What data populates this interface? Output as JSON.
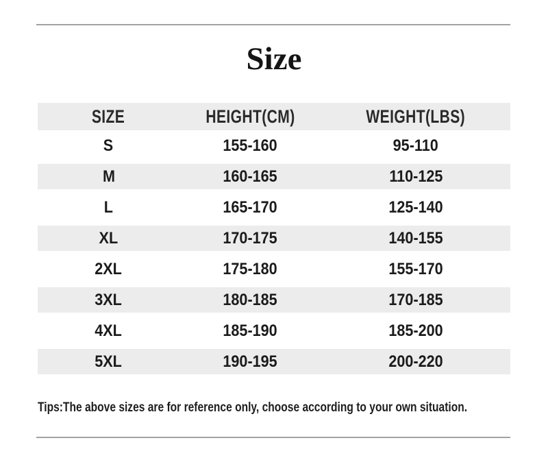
{
  "page": {
    "title": "Size",
    "tips": "Tips:The above sizes are for reference only, choose according to your own situation."
  },
  "chart_data": {
    "type": "table",
    "title": "Size",
    "columns": [
      "SIZE",
      "HEIGHT(CM)",
      "WEIGHT(LBS)"
    ],
    "rows": [
      [
        "S",
        "155-160",
        "95-110"
      ],
      [
        "M",
        "160-165",
        "110-125"
      ],
      [
        "L",
        "165-170",
        "125-140"
      ],
      [
        "XL",
        "170-175",
        "140-155"
      ],
      [
        "2XL",
        "175-180",
        "155-170"
      ],
      [
        "3XL",
        "180-185",
        "170-185"
      ],
      [
        "4XL",
        "185-190",
        "185-200"
      ],
      [
        "5XL",
        "190-195",
        "200-220"
      ]
    ],
    "footnote": "Tips:The above sizes are for reference only, choose according to your own situation.",
    "layout": {
      "header_shaded": true,
      "shaded_row_indices": [
        1,
        3,
        5,
        7
      ],
      "gridlines": false
    }
  },
  "colors": {
    "background": "#ffffff",
    "row_shade": "#ececec",
    "divider": "#a2a2a2",
    "text": "#1b1b1b"
  }
}
